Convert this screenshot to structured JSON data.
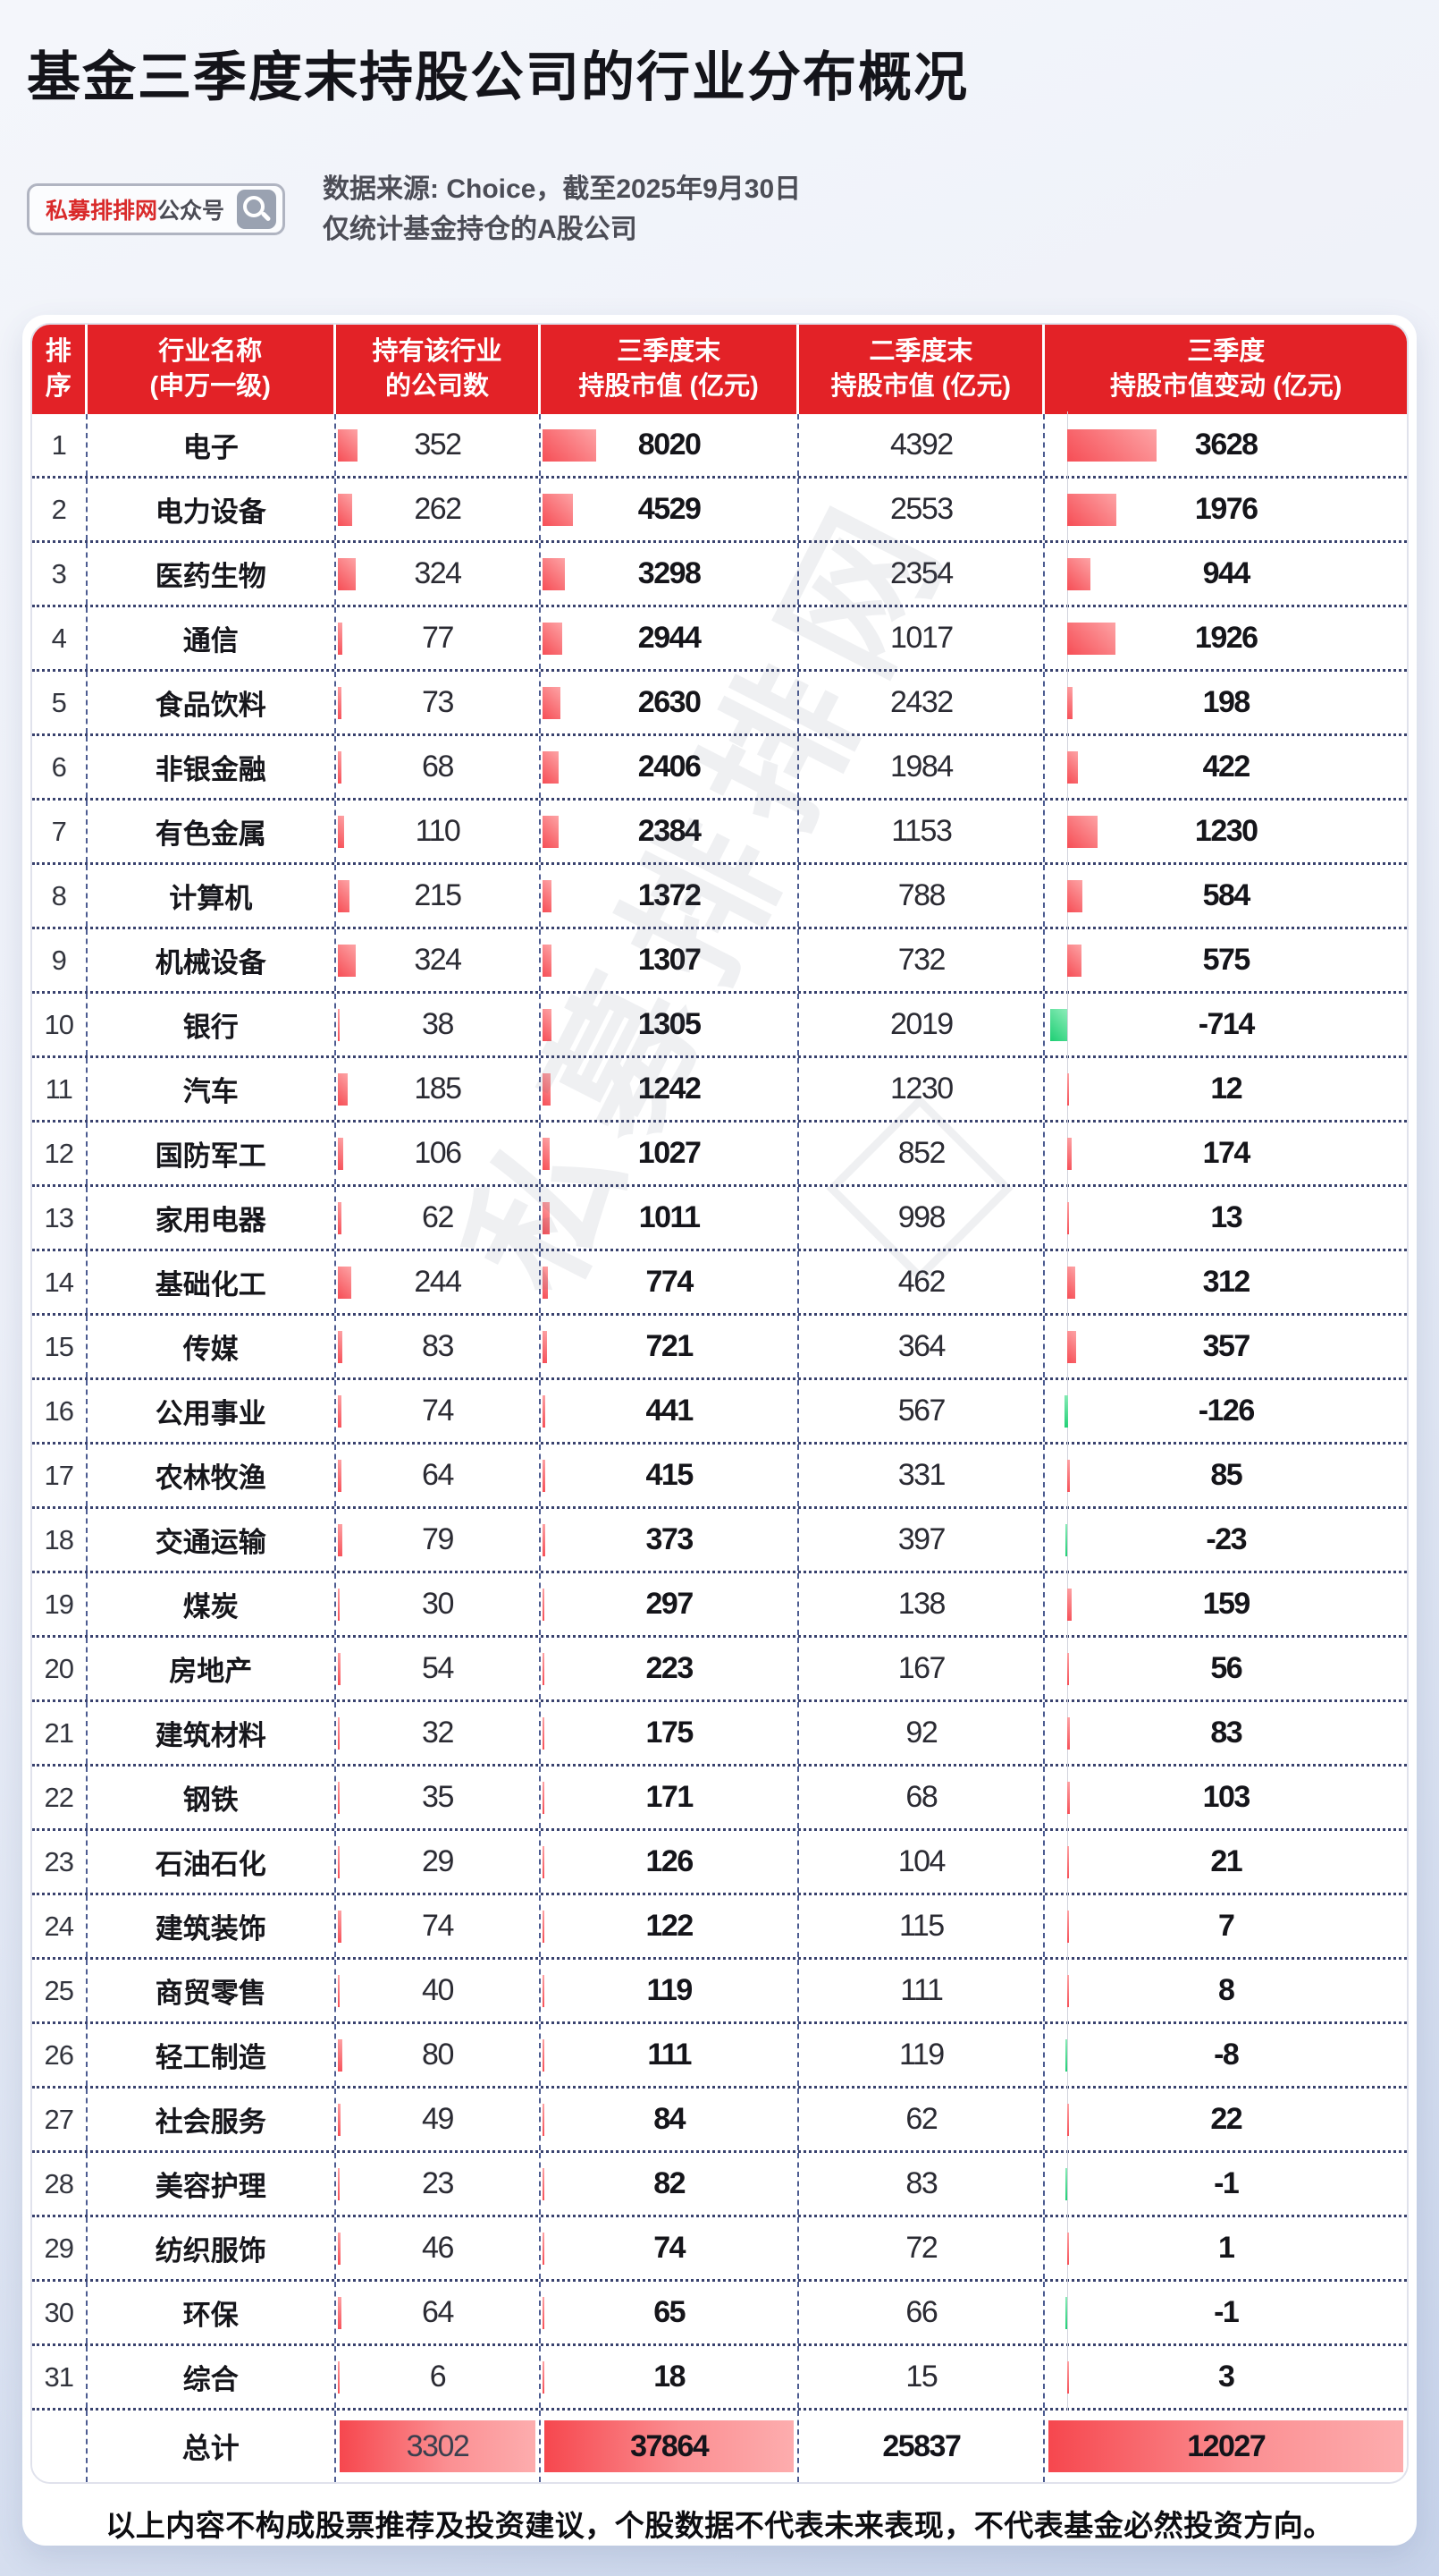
{
  "page": {
    "title": "基金三季度末持股公司的行业分布概况",
    "badge": {
      "brand": "私募排排网",
      "suffix": "公众号",
      "icon": "magnifier-icon"
    },
    "source_line1": "数据来源: Choice，截至2025年9月30日",
    "source_line2": "仅统计基金持仓的A股公司",
    "watermark": "私募排排网",
    "disclaimer": "以上内容不构成股票推荐及投资建议，个股数据不代表未来表现，不代表基金必然投资方向。"
  },
  "colors": {
    "header_red": "#e32227",
    "bar_red_dark": "#f64e56",
    "bar_red_light": "#fda3a5",
    "bar_green_dark": "#1ecf74",
    "bar_green_light": "#8cecb9",
    "grid_navy": "#39426e",
    "dash_navy": "#4d5c91",
    "background_blue": "#c7d3ea"
  },
  "table": {
    "headers": [
      [
        "排",
        "序"
      ],
      [
        "行业名称",
        "(申万一级)"
      ],
      [
        "持有该行业",
        "的公司数"
      ],
      [
        "三季度末",
        "持股市值 (亿元)"
      ],
      [
        "二季度末",
        "持股市值 (亿元)"
      ],
      [
        "三季度",
        "持股市值变动 (亿元)"
      ]
    ],
    "total_label": "总计",
    "total": [
      3302,
      37864,
      25837,
      12027
    ]
  },
  "chart_data": {
    "type": "table",
    "title": "基金三季度末持股公司的行业分布概况",
    "columns": [
      "排序",
      "行业名称(申万一级)",
      "持有该行业的公司数",
      "三季度末持股市值(亿元)",
      "二季度末持股市值(亿元)",
      "三季度持股市值变动(亿元)"
    ],
    "rows": [
      [
        1,
        "电子",
        352,
        8020,
        4392,
        3628
      ],
      [
        2,
        "电力设备",
        262,
        4529,
        2553,
        1976
      ],
      [
        3,
        "医药生物",
        324,
        3298,
        2354,
        944
      ],
      [
        4,
        "通信",
        77,
        2944,
        1017,
        1926
      ],
      [
        5,
        "食品饮料",
        73,
        2630,
        2432,
        198
      ],
      [
        6,
        "非银金融",
        68,
        2406,
        1984,
        422
      ],
      [
        7,
        "有色金属",
        110,
        2384,
        1153,
        1230
      ],
      [
        8,
        "计算机",
        215,
        1372,
        788,
        584
      ],
      [
        9,
        "机械设备",
        324,
        1307,
        732,
        575
      ],
      [
        10,
        "银行",
        38,
        1305,
        2019,
        -714
      ],
      [
        11,
        "汽车",
        185,
        1242,
        1230,
        12
      ],
      [
        12,
        "国防军工",
        106,
        1027,
        852,
        174
      ],
      [
        13,
        "家用电器",
        62,
        1011,
        998,
        13
      ],
      [
        14,
        "基础化工",
        244,
        774,
        462,
        312
      ],
      [
        15,
        "传媒",
        83,
        721,
        364,
        357
      ],
      [
        16,
        "公用事业",
        74,
        441,
        567,
        -126
      ],
      [
        17,
        "农林牧渔",
        64,
        415,
        331,
        85
      ],
      [
        18,
        "交通运输",
        79,
        373,
        397,
        -23
      ],
      [
        19,
        "煤炭",
        30,
        297,
        138,
        159
      ],
      [
        20,
        "房地产",
        54,
        223,
        167,
        56
      ],
      [
        21,
        "建筑材料",
        32,
        175,
        92,
        83
      ],
      [
        22,
        "钢铁",
        35,
        171,
        68,
        103
      ],
      [
        23,
        "石油石化",
        29,
        126,
        104,
        21
      ],
      [
        24,
        "建筑装饰",
        74,
        122,
        115,
        7
      ],
      [
        25,
        "商贸零售",
        40,
        119,
        111,
        8
      ],
      [
        26,
        "轻工制造",
        80,
        111,
        119,
        -8
      ],
      [
        27,
        "社会服务",
        49,
        84,
        62,
        22
      ],
      [
        28,
        "美容护理",
        23,
        82,
        83,
        -1
      ],
      [
        29,
        "纺织服饰",
        46,
        74,
        72,
        1
      ],
      [
        30,
        "环保",
        64,
        65,
        66,
        -1
      ],
      [
        31,
        "综合",
        6,
        18,
        15,
        3
      ]
    ],
    "total_row": [
      "总计",
      3302,
      37864,
      25837,
      12027
    ],
    "layout_hints": {
      "bar_columns": [
        "持有该行业的公司数",
        "三季度末持股市值(亿元)",
        "三季度持股市值变动(亿元)"
      ],
      "negative_bar_color": "green",
      "positive_bar_color": "red"
    }
  }
}
